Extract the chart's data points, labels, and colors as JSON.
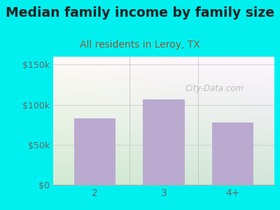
{
  "title": "Median family income by family size",
  "subtitle": "All residents in Leroy, TX",
  "categories": [
    "2",
    "3",
    "4+"
  ],
  "values": [
    83000,
    107000,
    78000
  ],
  "bar_color": "#bbaad0",
  "bg_color": "#00f0f0",
  "plot_bg_color_topleft": "#d8eed8",
  "plot_bg_color_topright": "#e8e8f0",
  "plot_bg_color_bottom": "#f0faf0",
  "title_color": "#222222",
  "subtitle_color": "#8b5a3a",
  "tick_color": "#666666",
  "ylim": [
    0,
    160000
  ],
  "yticks": [
    0,
    50000,
    100000,
    150000
  ],
  "ytick_labels": [
    "$0",
    "$50k",
    "$100k",
    "$150k"
  ],
  "watermark": "City-Data.com",
  "title_fontsize": 13.5,
  "subtitle_fontsize": 10
}
